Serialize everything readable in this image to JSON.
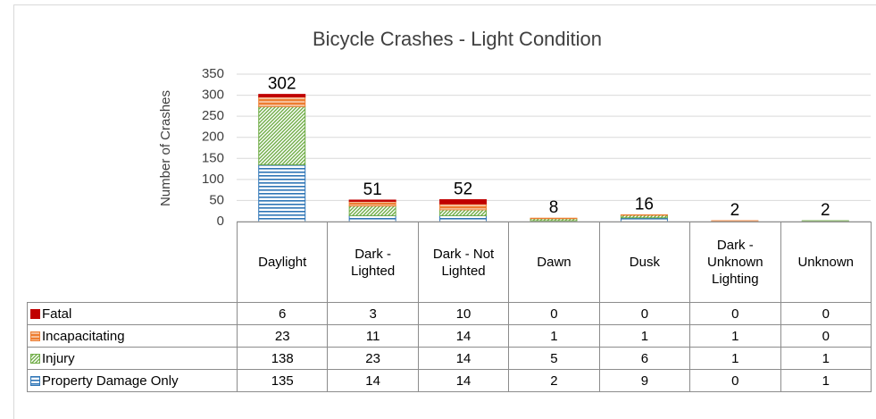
{
  "chart_data": {
    "type": "stacked-bar",
    "title": "Bicycle Crashes - Light Condition",
    "y_label": "Number of Crashes",
    "categories": [
      "Daylight",
      "Dark - Lighted",
      "Dark - Not Lighted",
      "Dawn",
      "Dusk",
      "Dark - Unknown Lighting",
      "Unknown"
    ],
    "series": [
      {
        "name": "Fatal",
        "color": "#c00000",
        "pattern": "solid",
        "values": [
          6,
          3,
          10,
          0,
          0,
          0,
          0
        ]
      },
      {
        "name": "Incapacitating",
        "color": "#ed7d31",
        "pattern": "band",
        "values": [
          23,
          11,
          14,
          1,
          1,
          1,
          0
        ]
      },
      {
        "name": "Injury",
        "color": "#70ad47",
        "pattern": "diagonal",
        "values": [
          138,
          23,
          14,
          5,
          6,
          1,
          1
        ]
      },
      {
        "name": "Property Damage Only",
        "color": "#2e75b6",
        "pattern": "horizontal",
        "values": [
          135,
          14,
          14,
          2,
          9,
          0,
          1
        ]
      }
    ],
    "totals": [
      302,
      51,
      52,
      8,
      16,
      2,
      2
    ],
    "ylim": [
      0,
      350
    ],
    "yticks": [
      0,
      50,
      100,
      150,
      200,
      250,
      300,
      350
    ],
    "grid": true
  }
}
